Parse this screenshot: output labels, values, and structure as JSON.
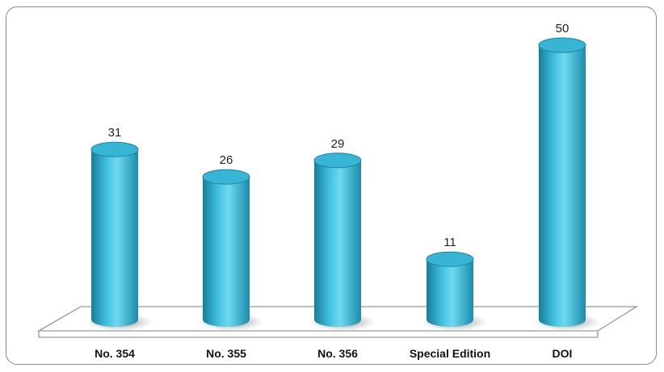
{
  "chart_data": {
    "type": "bar",
    "style": "3d-cylinder",
    "categories": [
      "No. 354",
      "No. 355",
      "No. 356",
      "Special Edition",
      "DOI"
    ],
    "values": [
      31,
      26,
      29,
      11,
      50
    ],
    "title": "",
    "xlabel": "",
    "ylabel": "",
    "ylim": [
      0,
      50
    ],
    "grid": false,
    "legend": "none",
    "colors": {
      "bar_side": "#1f9ab8",
      "bar_mid": "#5fd2ec",
      "bar_top": "#38b4d4",
      "bar_top_rim": "#1b86a3",
      "floor_stroke": "#9a9a9a",
      "shadow": "#8c8c8c"
    }
  }
}
